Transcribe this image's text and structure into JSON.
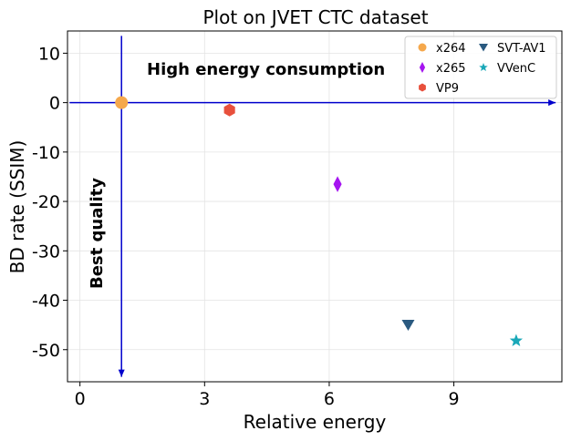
{
  "chart_data": {
    "type": "scatter",
    "title": "Plot on JVET CTC dataset",
    "xlabel": "Relative energy",
    "ylabel": "BD rate (SSIM)",
    "xlim": [
      -0.3,
      11.6
    ],
    "ylim": [
      -56.5,
      14.5
    ],
    "xticks": [
      0,
      3,
      6,
      9
    ],
    "yticks": [
      10,
      0,
      -10,
      -20,
      -30,
      -40,
      -50
    ],
    "grid": true,
    "legend_position": "top-right",
    "series": [
      {
        "name": "x264",
        "x": 1.0,
        "y": 0.0,
        "color": "#f5a84c",
        "marker": "circle"
      },
      {
        "name": "x265",
        "x": 6.2,
        "y": -16.5,
        "color": "#a514f0",
        "marker": "diamond"
      },
      {
        "name": "VP9",
        "x": 3.6,
        "y": -1.5,
        "color": "#e8503c",
        "marker": "hexagon"
      },
      {
        "name": "SVT-AV1",
        "x": 7.9,
        "y": -45.0,
        "color": "#2a5a80",
        "marker": "triangle-down"
      },
      {
        "name": "VVenC",
        "x": 10.5,
        "y": -48.2,
        "color": "#1aa8b8",
        "marker": "star"
      }
    ],
    "annotations": [
      {
        "text": "High energy consumption",
        "orientation": "horizontal"
      },
      {
        "text": "Best quality",
        "orientation": "vertical"
      }
    ],
    "arrows": [
      {
        "from": [
          -0.25,
          0
        ],
        "to": [
          11.45,
          0
        ],
        "color": "#0000cc"
      },
      {
        "from": [
          1.0,
          13.5
        ],
        "to": [
          1.0,
          -55.5
        ],
        "color": "#0000cc"
      }
    ]
  }
}
